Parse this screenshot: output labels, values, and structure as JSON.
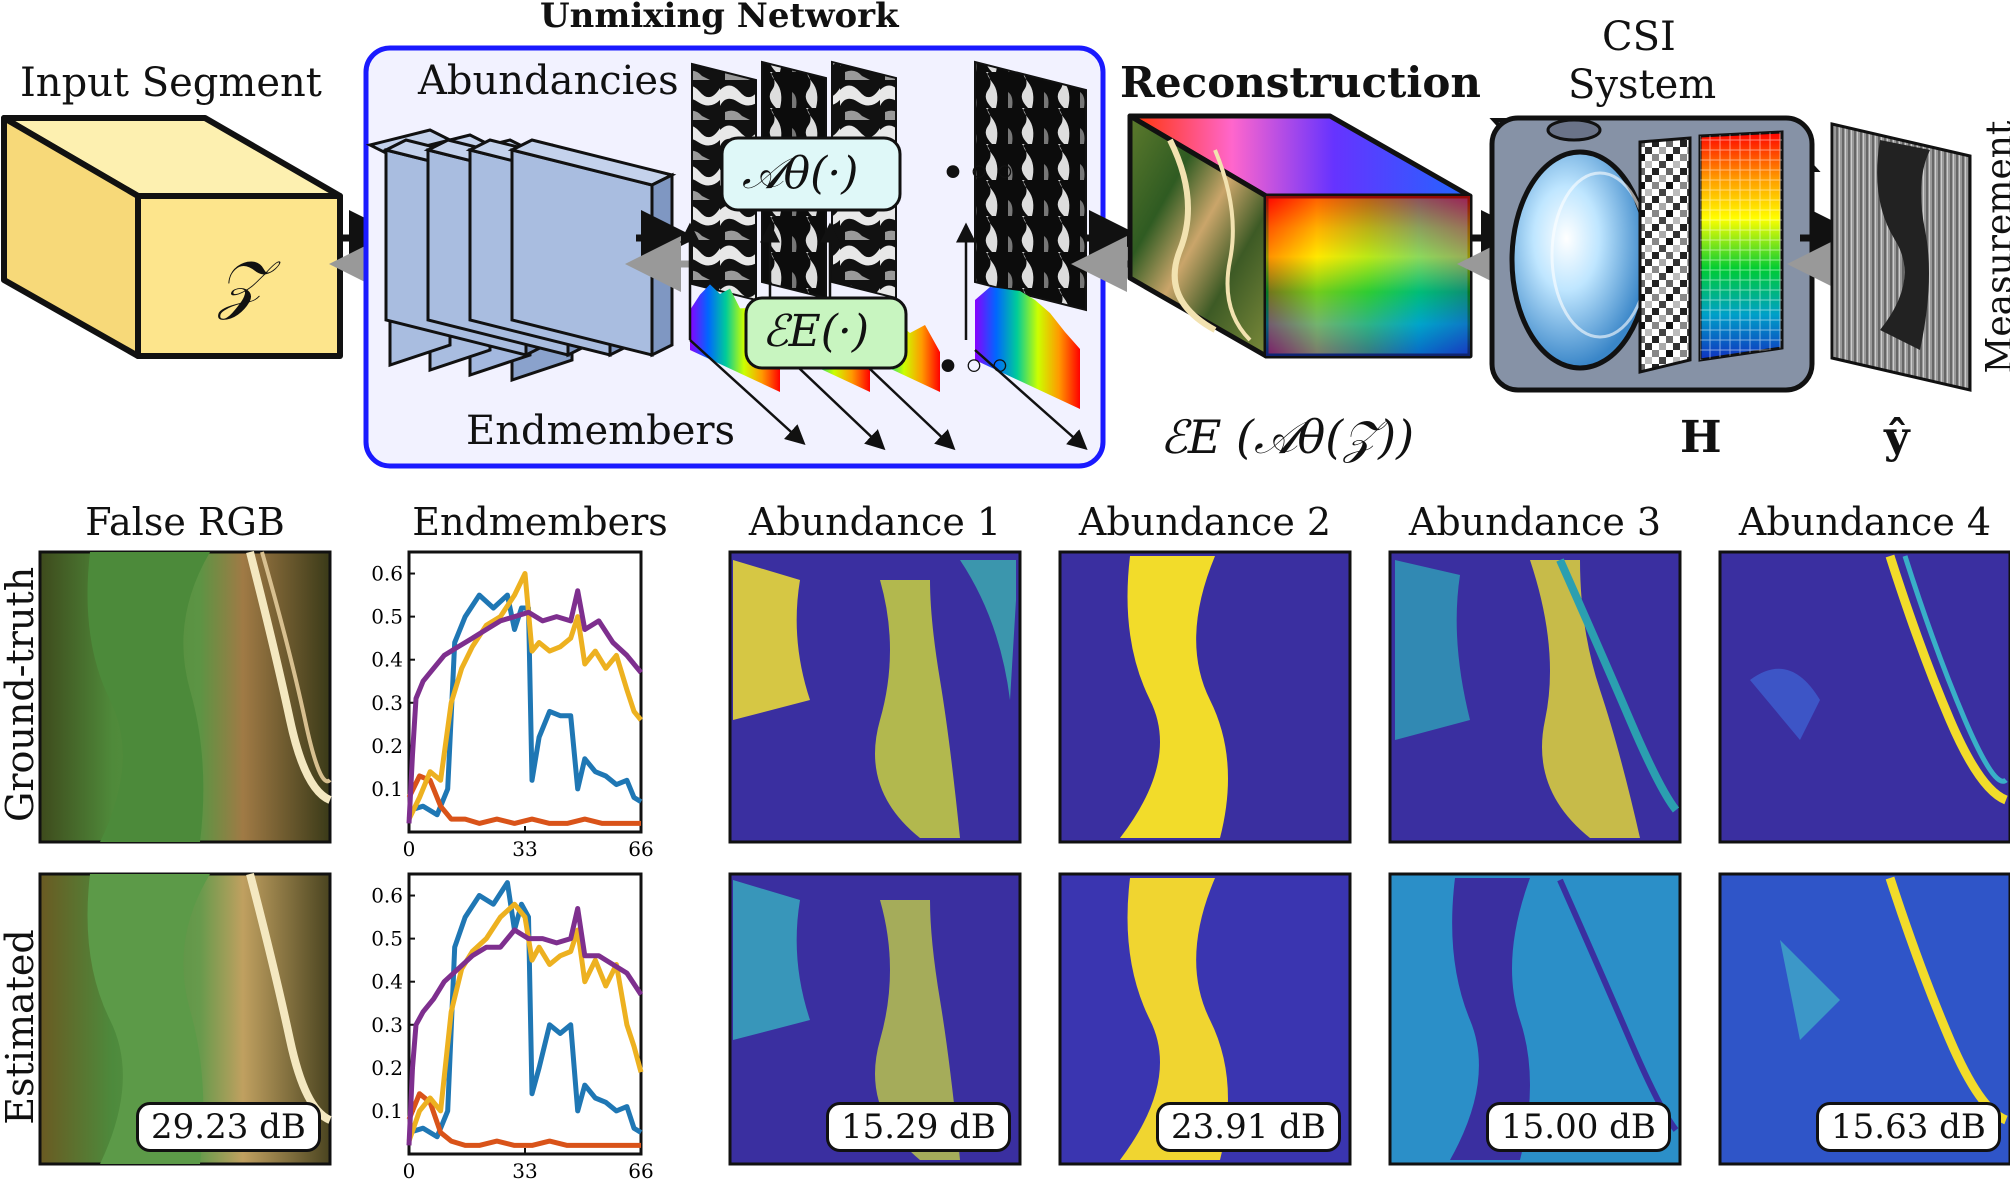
{
  "top": {
    "input_label": "Input Segment",
    "input_symbol": "𝒵",
    "network_title": "Unmixing Network",
    "abundancies_label": "Abundancies",
    "abundance_operator": "𝒜θ(·)",
    "endmember_operator": "ℰE(·)",
    "endmembers_label": "Endmembers",
    "reconstruction_label": "Reconstruction",
    "reconstruction_formula": "ℰE (𝒜θ(𝒵))",
    "csi_label_line1": "CSI",
    "csi_label_line2": "System",
    "csi_symbol": "H",
    "measurement_label": "Measurement",
    "measurement_symbol": "ŷ",
    "ellipsis": "•◦◦"
  },
  "bottom": {
    "columns": [
      "False RGB",
      "Endmembers",
      "Abundance 1",
      "Abundance 2",
      "Abundance 3",
      "Abundance 4"
    ],
    "rows": [
      "Ground-truth",
      "Estimated"
    ],
    "estimated_db": {
      "rgb": "29.23 dB",
      "ab1": "15.29 dB",
      "ab2": "23.91 dB",
      "ab3": "15.00 dB",
      "ab4": "15.63 dB"
    }
  },
  "colors": {
    "network_border": "#1a1aff",
    "divider": "#1a1aff",
    "input_fill": "#fde58c",
    "layer_fill": "#a9bde0",
    "series_blue": "#1f77b4",
    "series_orange": "#d95319",
    "series_yellow": "#edb120",
    "series_purple": "#7e2f8e",
    "abund_low": "#3a2fa0",
    "abund_high": "#f5e12a"
  },
  "chart_data": [
    {
      "type": "line",
      "title": "Endmembers",
      "row": "Ground-truth",
      "x_ticks": [
        0,
        33,
        66
      ],
      "y_ticks": [
        0.1,
        0.2,
        0.3,
        0.4,
        0.5,
        0.6
      ],
      "xlim": [
        0,
        66
      ],
      "ylim": [
        0,
        0.65
      ],
      "series": [
        {
          "color": "#1f77b4",
          "x": [
            0,
            4,
            8,
            11,
            13,
            16,
            20,
            24,
            28,
            30,
            32,
            34,
            35,
            37,
            40,
            43,
            46,
            48,
            50,
            53,
            56,
            59,
            62,
            64,
            66
          ],
          "y": [
            0.05,
            0.06,
            0.04,
            0.1,
            0.44,
            0.5,
            0.55,
            0.52,
            0.55,
            0.47,
            0.52,
            0.52,
            0.12,
            0.22,
            0.28,
            0.27,
            0.27,
            0.1,
            0.17,
            0.14,
            0.13,
            0.11,
            0.12,
            0.08,
            0.07
          ]
        },
        {
          "color": "#d95319",
          "x": [
            0,
            3,
            6,
            9,
            12,
            16,
            20,
            25,
            30,
            35,
            40,
            45,
            50,
            55,
            60,
            66
          ],
          "y": [
            0.08,
            0.13,
            0.12,
            0.06,
            0.03,
            0.03,
            0.02,
            0.03,
            0.02,
            0.03,
            0.02,
            0.02,
            0.03,
            0.02,
            0.02,
            0.02
          ]
        },
        {
          "color": "#edb120",
          "x": [
            0,
            3,
            6,
            9,
            12,
            15,
            18,
            22,
            26,
            30,
            33,
            35,
            37,
            40,
            43,
            46,
            48,
            50,
            53,
            56,
            59,
            62,
            64,
            66
          ],
          "y": [
            0.03,
            0.08,
            0.14,
            0.12,
            0.3,
            0.38,
            0.43,
            0.48,
            0.5,
            0.55,
            0.6,
            0.42,
            0.44,
            0.42,
            0.43,
            0.45,
            0.5,
            0.39,
            0.42,
            0.38,
            0.41,
            0.33,
            0.28,
            0.26
          ]
        },
        {
          "color": "#7e2f8e",
          "x": [
            0,
            1,
            2,
            4,
            7,
            10,
            14,
            18,
            22,
            26,
            30,
            34,
            38,
            42,
            46,
            48,
            50,
            54,
            58,
            62,
            66
          ],
          "y": [
            0.02,
            0.18,
            0.31,
            0.35,
            0.38,
            0.41,
            0.43,
            0.45,
            0.47,
            0.49,
            0.5,
            0.51,
            0.49,
            0.5,
            0.49,
            0.56,
            0.47,
            0.49,
            0.44,
            0.41,
            0.37
          ]
        }
      ]
    },
    {
      "type": "line",
      "title": "",
      "row": "Estimated",
      "x_ticks": [
        0,
        33,
        66
      ],
      "y_ticks": [
        0.1,
        0.2,
        0.3,
        0.4,
        0.5,
        0.6
      ],
      "xlim": [
        0,
        66
      ],
      "ylim": [
        0,
        0.65
      ],
      "series": [
        {
          "color": "#1f77b4",
          "x": [
            0,
            4,
            8,
            11,
            13,
            16,
            20,
            24,
            28,
            30,
            32,
            34,
            35,
            37,
            40,
            43,
            46,
            48,
            50,
            53,
            56,
            59,
            62,
            64,
            66
          ],
          "y": [
            0.05,
            0.06,
            0.04,
            0.1,
            0.48,
            0.55,
            0.6,
            0.58,
            0.63,
            0.52,
            0.58,
            0.55,
            0.14,
            0.2,
            0.3,
            0.28,
            0.3,
            0.1,
            0.16,
            0.13,
            0.12,
            0.1,
            0.11,
            0.06,
            0.05
          ]
        },
        {
          "color": "#d95319",
          "x": [
            0,
            3,
            6,
            9,
            12,
            16,
            20,
            25,
            30,
            35,
            40,
            45,
            50,
            55,
            60,
            66
          ],
          "y": [
            0.08,
            0.14,
            0.12,
            0.05,
            0.03,
            0.02,
            0.02,
            0.03,
            0.02,
            0.02,
            0.03,
            0.02,
            0.02,
            0.02,
            0.02,
            0.02
          ]
        },
        {
          "color": "#edb120",
          "x": [
            0,
            3,
            6,
            9,
            12,
            15,
            18,
            22,
            26,
            30,
            33,
            35,
            37,
            40,
            43,
            46,
            48,
            50,
            53,
            56,
            59,
            62,
            64,
            66
          ],
          "y": [
            0.03,
            0.1,
            0.13,
            0.1,
            0.33,
            0.43,
            0.47,
            0.5,
            0.55,
            0.58,
            0.55,
            0.45,
            0.48,
            0.44,
            0.46,
            0.47,
            0.52,
            0.4,
            0.45,
            0.39,
            0.44,
            0.3,
            0.25,
            0.19
          ]
        },
        {
          "color": "#7e2f8e",
          "x": [
            0,
            1,
            2,
            4,
            7,
            10,
            14,
            18,
            22,
            26,
            30,
            34,
            38,
            42,
            46,
            48,
            50,
            54,
            58,
            62,
            66
          ],
          "y": [
            0.02,
            0.2,
            0.3,
            0.33,
            0.36,
            0.4,
            0.43,
            0.46,
            0.48,
            0.48,
            0.52,
            0.5,
            0.5,
            0.49,
            0.5,
            0.57,
            0.46,
            0.46,
            0.44,
            0.42,
            0.37
          ]
        }
      ]
    }
  ]
}
